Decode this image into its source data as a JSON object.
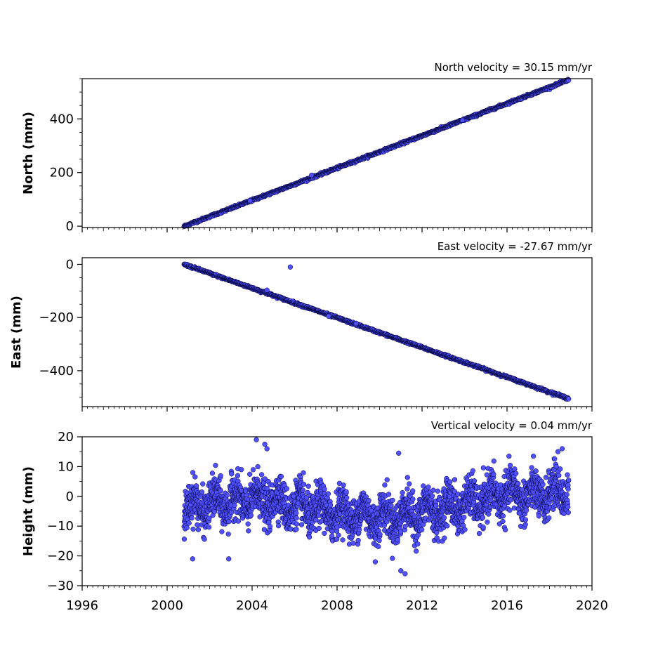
{
  "chart_data": [
    {
      "type": "scatter",
      "title": "North velocity = 30.15 mm/yr",
      "xlabel": "",
      "ylabel": "North (mm)",
      "xlim": [
        1996,
        2020
      ],
      "ylim": [
        -5,
        550
      ],
      "yticks": [
        "0",
        "200",
        "400"
      ],
      "xticks": [
        "1996",
        "2000",
        "2004",
        "2008",
        "2012",
        "2016",
        "2020"
      ],
      "grid": false,
      "marker_color": "#5050ff",
      "marker_edge": "#000033",
      "series": [
        {
          "trend": {
            "start": [
              2000.8,
              0
            ],
            "end": [
              2018.9,
              545
            ]
          },
          "noise_mm": 2.0,
          "outliers": [
            [
              2006.8,
              190
            ],
            [
              2013.9,
              395
            ],
            [
              2003.9,
              95
            ]
          ]
        }
      ]
    },
    {
      "type": "scatter",
      "title": "East velocity = -27.67 mm/yr",
      "xlabel": "",
      "ylabel": "East (mm)",
      "xlim": [
        1996,
        2020
      ],
      "ylim": [
        -535,
        25
      ],
      "yticks": [
        "0",
        "−200",
        "−400"
      ],
      "xticks": [
        "1996",
        "2000",
        "2004",
        "2008",
        "2012",
        "2016",
        "2020"
      ],
      "grid": false,
      "marker_color": "#5050ff",
      "marker_edge": "#000033",
      "series": [
        {
          "trend": {
            "start": [
              2000.8,
              0
            ],
            "end": [
              2018.9,
              -505
            ]
          },
          "noise_mm": 2.0,
          "outliers": [
            [
              2005.8,
              -10
            ],
            [
              2004.7,
              -97
            ],
            [
              2007.6,
              -195
            ],
            [
              2008.9,
              -222
            ]
          ]
        }
      ]
    },
    {
      "type": "scatter",
      "title": "Vertical velocity = 0.04 mm/yr",
      "xlabel": "",
      "ylabel": "Height (mm)",
      "xlim": [
        1996,
        2020
      ],
      "ylim": [
        -30,
        20
      ],
      "yticks": [
        "−30",
        "−20",
        "−10",
        "0",
        "10",
        "20"
      ],
      "xticks": [
        "1996",
        "2000",
        "2004",
        "2008",
        "2012",
        "2016",
        "2020"
      ],
      "grid": false,
      "marker_color": "#5050ff",
      "marker_edge": "#000033",
      "series": [
        {
          "x_range": [
            2000.8,
            2018.9
          ],
          "mean_curve": [
            [
              2000.8,
              -4
            ],
            [
              2002.5,
              -2
            ],
            [
              2004.5,
              -1
            ],
            [
              2006.5,
              -4
            ],
            [
              2008.5,
              -6
            ],
            [
              2010.5,
              -7
            ],
            [
              2012.5,
              -5
            ],
            [
              2014.5,
              -2
            ],
            [
              2016,
              1
            ],
            [
              2017.5,
              0
            ],
            [
              2018.9,
              2
            ]
          ],
          "spread_mm": 6.5,
          "outliers": [
            [
              2004.2,
              19
            ],
            [
              2004.6,
              17.5
            ],
            [
              2004.7,
              16
            ],
            [
              2010.9,
              14.5
            ],
            [
              2011.0,
              -25
            ],
            [
              2011.2,
              -26
            ],
            [
              2018.4,
              15
            ],
            [
              2018.6,
              16
            ],
            [
              2001.2,
              -21
            ],
            [
              2002.9,
              -21
            ],
            [
              2009.8,
              -22
            ]
          ]
        }
      ]
    }
  ]
}
